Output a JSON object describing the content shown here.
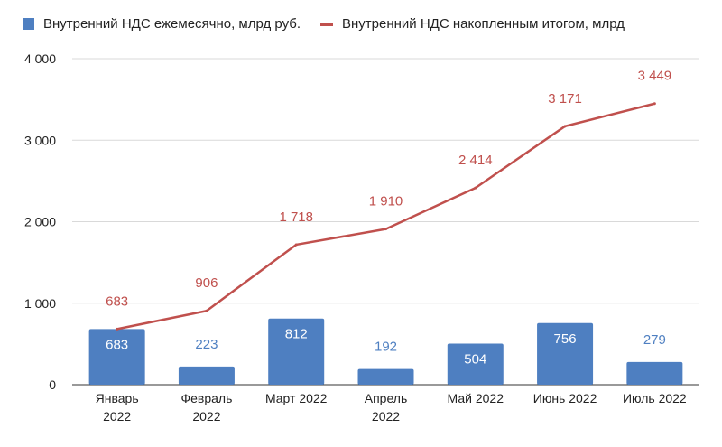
{
  "chart_data": {
    "type": "bar+line",
    "categories": [
      "Январь\n2022",
      "Февраль\n2022",
      "Март 2022",
      "Апрель\n2022",
      "Май 2022",
      "Июнь 2022",
      "Июль 2022"
    ],
    "series": [
      {
        "name": "Внутренний НДС ежемесячно, млрд руб.",
        "type": "bar",
        "values": [
          683,
          223,
          812,
          192,
          504,
          756,
          279
        ],
        "labels": [
          "683",
          "223",
          "812",
          "192",
          "504",
          "756",
          "279"
        ],
        "color": "#4e7fc1"
      },
      {
        "name": "Внутренний НДС накопленным итогом, млрд",
        "type": "line",
        "values": [
          683,
          906,
          1718,
          1910,
          2414,
          3171,
          3449
        ],
        "labels": [
          "683",
          "906",
          "1 718",
          "1 910",
          "2 414",
          "3 171",
          "3 449"
        ],
        "color": "#c0504d"
      }
    ],
    "ylim": [
      0,
      4000
    ],
    "yticks": [
      0,
      1000,
      2000,
      3000,
      4000
    ],
    "ytick_labels": [
      "0",
      "1 000",
      "2 000",
      "3 000",
      "4 000"
    ],
    "grid": true,
    "legend_position": "top-left"
  }
}
